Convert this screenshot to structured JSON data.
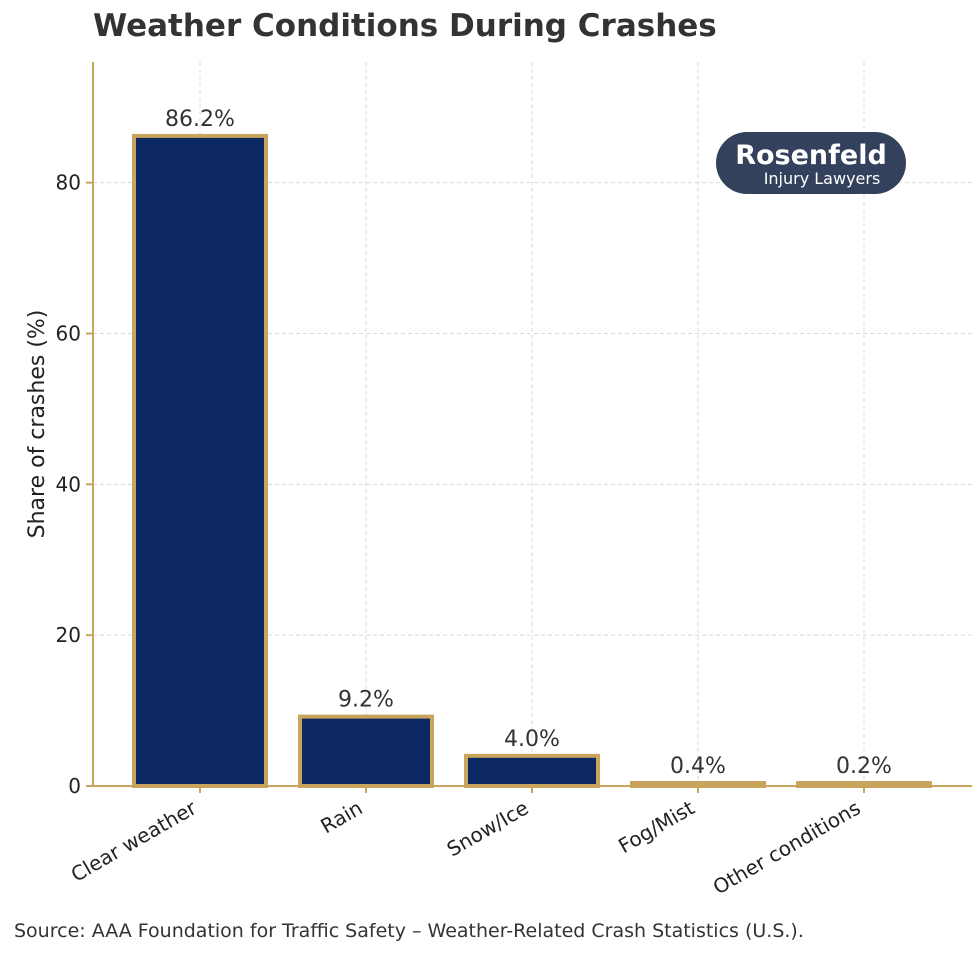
{
  "title": "Weather Conditions During Crashes",
  "source": "Source: AAA Foundation for Traffic Safety – Weather-Related Crash Statistics (U.S.).",
  "logo": {
    "name": "Rosenfeld",
    "tagline": "Injury Lawyers",
    "bg_color": "#33415c"
  },
  "colors": {
    "bar_fill": "#0b2862",
    "bar_edge": "#c9a45c",
    "axis": "#c9a45c",
    "grid": "#d9d9d9",
    "text": "#333333"
  },
  "chart_data": {
    "type": "bar",
    "title": "Weather Conditions During Crashes",
    "categories": [
      "Clear weather",
      "Rain",
      "Snow/Ice",
      "Fog/Mist",
      "Other conditions"
    ],
    "values": [
      86.2,
      9.2,
      4.0,
      0.4,
      0.2
    ],
    "value_labels": [
      "86.2%",
      "9.2%",
      "4.0%",
      "0.4%",
      "0.2%"
    ],
    "xlabel": "",
    "ylabel": "Share of crashes (%)",
    "ylim": [
      0,
      96
    ],
    "yticks": [
      0,
      20,
      40,
      60,
      80
    ],
    "grid": true,
    "legend": "none"
  }
}
